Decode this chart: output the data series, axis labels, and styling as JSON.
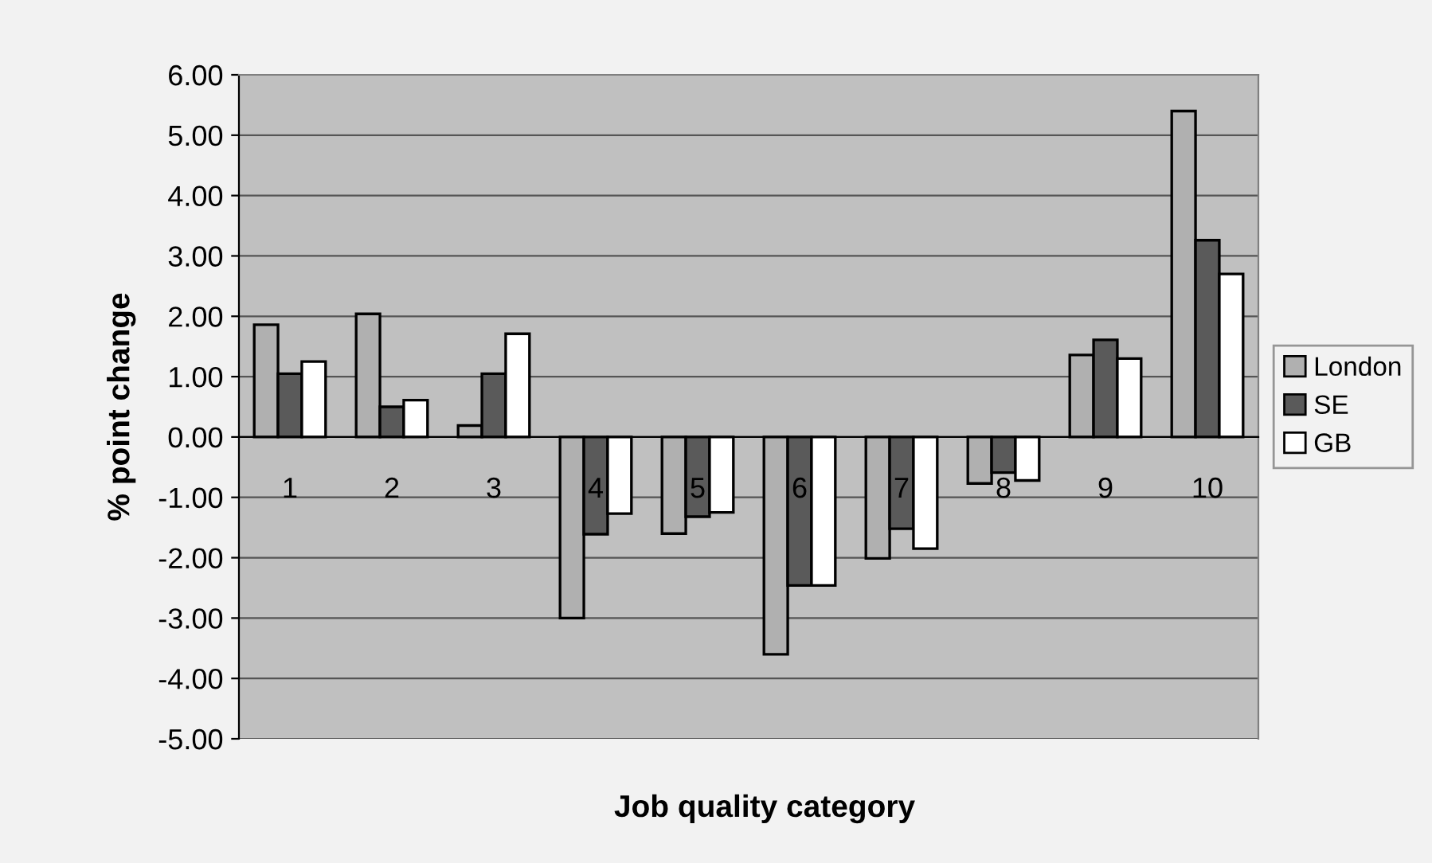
{
  "chart_data": {
    "type": "bar",
    "xlabel": "Job quality category",
    "ylabel": "% point change",
    "categories": [
      "1",
      "2",
      "3",
      "4",
      "5",
      "6",
      "7",
      "8",
      "9",
      "10"
    ],
    "series": [
      {
        "name": "London",
        "color": "#b0b0b0",
        "values": [
          1.86,
          2.04,
          0.19,
          -3.0,
          -1.6,
          -3.6,
          -2.01,
          -0.77,
          1.36,
          5.4
        ]
      },
      {
        "name": "SE",
        "color": "#5a5a5a",
        "values": [
          1.05,
          0.5,
          1.05,
          -1.61,
          -1.32,
          -2.46,
          -1.52,
          -0.59,
          1.61,
          3.26
        ]
      },
      {
        "name": "GB",
        "color": "#ffffff",
        "values": [
          1.25,
          0.61,
          1.71,
          -1.27,
          -1.25,
          -2.46,
          -1.85,
          -0.72,
          1.3,
          2.7
        ]
      }
    ],
    "ylim": [
      -5,
      6
    ],
    "yticks": [
      {
        "value": -5,
        "label": "-5.00"
      },
      {
        "value": -4,
        "label": "-4.00"
      },
      {
        "value": -3,
        "label": "-3.00"
      },
      {
        "value": -2,
        "label": "-2.00"
      },
      {
        "value": -1,
        "label": "-1.00"
      },
      {
        "value": 0,
        "label": "0.00"
      },
      {
        "value": 1,
        "label": "1.00"
      },
      {
        "value": 2,
        "label": "2.00"
      },
      {
        "value": 3,
        "label": "3.00"
      },
      {
        "value": 4,
        "label": "4.00"
      },
      {
        "value": 5,
        "label": "5.00"
      },
      {
        "value": 6,
        "label": "6.00"
      }
    ],
    "grid": "y",
    "legend": "right"
  }
}
